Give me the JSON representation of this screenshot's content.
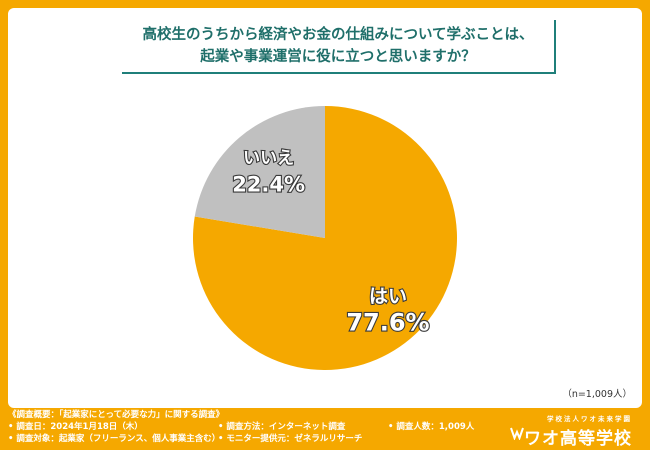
{
  "title": {
    "line1": "高校生のうちから経済やお金の仕組みについて学ぶことは、",
    "line2": "起業や事業運営に役に立つと思いますか？"
  },
  "chart_data": {
    "type": "pie",
    "slices": [
      {
        "label": "はい",
        "value": 77.6,
        "value_label": "77.6%",
        "color": "#f5a800"
      },
      {
        "label": "いいえ",
        "value": 22.4,
        "value_label": "22.4%",
        "color": "#c0c0c0"
      }
    ]
  },
  "sample_note": "（n=1,009人）",
  "footer": {
    "overview": "《調査概要：「起業家にとって必要な力」に関する調査》",
    "date": "• 調査日：2024年1月18日（木）",
    "target": "• 調査対象：起業家（フリーランス、個人事業主含む）",
    "method": "• 調査方法：インターネット調査",
    "provider": "• モニター提供元：ゼネラルリサーチ",
    "count": "• 調査人数：1,009人",
    "school_sub": "学校法人ワオ未来学園",
    "school_name": "ワオ高等学校"
  },
  "colors": {
    "accent": "#f5a800",
    "title": "#1f6f6a",
    "no_slice": "#c0c0c0"
  }
}
